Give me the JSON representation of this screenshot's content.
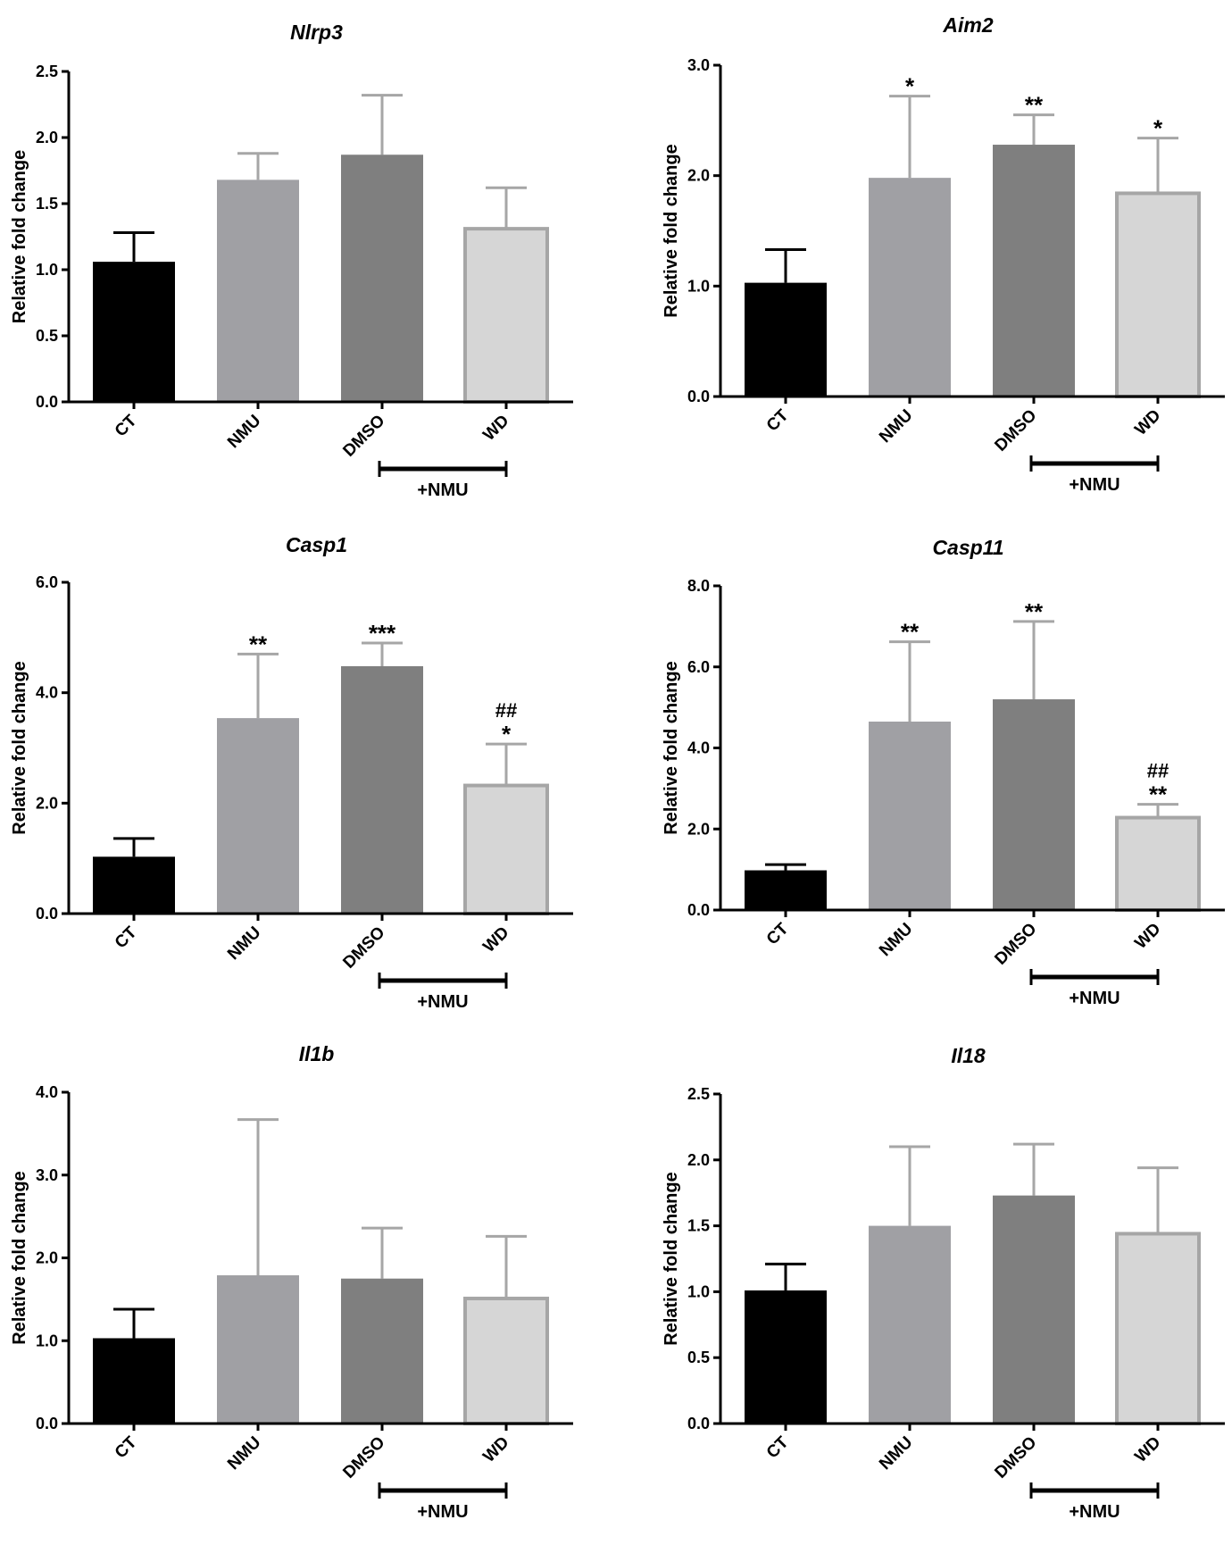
{
  "chart_data": [
    {
      "type": "bar",
      "title": "Nlrp3",
      "ylabel": "Relative fold change",
      "ylim": [
        0,
        2.5
      ],
      "yticks": [
        "0.0",
        "0.5",
        "1.0",
        "1.5",
        "2.0",
        "2.5"
      ],
      "categories": [
        "CT",
        "NMU",
        "DMSO",
        "WD"
      ],
      "values": [
        1.06,
        1.68,
        1.87,
        1.31
      ],
      "errors": [
        0.22,
        0.2,
        0.45,
        0.31
      ],
      "significance": [
        "",
        "",
        "",
        ""
      ],
      "hash_marks": [
        "",
        "",
        "",
        ""
      ],
      "group_label": "+NMU",
      "group_span": [
        "DMSO",
        "WD"
      ],
      "colors": [
        "#000000",
        "#a0a0a4",
        "#7f7f7f",
        "#d6d6d6"
      ]
    },
    {
      "type": "bar",
      "title": "Aim2",
      "ylabel": "Relative fold change",
      "ylim": [
        0,
        3.0
      ],
      "yticks": [
        "0.0",
        "1.0",
        "2.0",
        "3.0"
      ],
      "categories": [
        "CT",
        "NMU",
        "DMSO",
        "WD"
      ],
      "values": [
        1.03,
        1.98,
        2.28,
        1.84
      ],
      "errors": [
        0.3,
        0.74,
        0.27,
        0.5
      ],
      "significance": [
        "",
        "*",
        "**",
        "*"
      ],
      "hash_marks": [
        "",
        "",
        "",
        ""
      ],
      "group_label": "+NMU",
      "group_span": [
        "DMSO",
        "WD"
      ],
      "colors": [
        "#000000",
        "#a0a0a4",
        "#7f7f7f",
        "#d6d6d6"
      ]
    },
    {
      "type": "bar",
      "title": "Casp1",
      "ylabel": "Relative fold change",
      "ylim": [
        0,
        6.0
      ],
      "yticks": [
        "0.0",
        "2.0",
        "4.0",
        "6.0"
      ],
      "categories": [
        "CT",
        "NMU",
        "DMSO",
        "WD"
      ],
      "values": [
        1.03,
        3.54,
        4.48,
        2.32
      ],
      "errors": [
        0.33,
        1.16,
        0.42,
        0.75
      ],
      "significance": [
        "",
        "**",
        "***",
        "*"
      ],
      "hash_marks": [
        "",
        "",
        "",
        "##"
      ],
      "group_label": "+NMU",
      "group_span": [
        "DMSO",
        "WD"
      ],
      "colors": [
        "#000000",
        "#a0a0a4",
        "#7f7f7f",
        "#d6d6d6"
      ]
    },
    {
      "type": "bar",
      "title": "Casp11",
      "ylabel": "Relative fold change",
      "ylim": [
        0,
        8.0
      ],
      "yticks": [
        "0.0",
        "2.0",
        "4.0",
        "6.0",
        "8.0"
      ],
      "categories": [
        "CT",
        "NMU",
        "DMSO",
        "WD"
      ],
      "values": [
        0.98,
        4.65,
        5.2,
        2.28
      ],
      "errors": [
        0.14,
        1.97,
        1.92,
        0.33
      ],
      "significance": [
        "",
        "**",
        "**",
        "**"
      ],
      "hash_marks": [
        "",
        "",
        "",
        "##"
      ],
      "group_label": "+NMU",
      "group_span": [
        "DMSO",
        "WD"
      ],
      "colors": [
        "#000000",
        "#a0a0a4",
        "#7f7f7f",
        "#d6d6d6"
      ]
    },
    {
      "type": "bar",
      "title": "Il1b",
      "ylabel": "Relative fold change",
      "ylim": [
        0,
        4.0
      ],
      "yticks": [
        "0.0",
        "1.0",
        "2.0",
        "3.0",
        "4.0"
      ],
      "categories": [
        "CT",
        "NMU",
        "DMSO",
        "WD"
      ],
      "values": [
        1.03,
        1.79,
        1.75,
        1.51
      ],
      "errors": [
        0.35,
        1.88,
        0.61,
        0.75
      ],
      "significance": [
        "",
        "",
        "",
        ""
      ],
      "hash_marks": [
        "",
        "",
        "",
        ""
      ],
      "group_label": "+NMU",
      "group_span": [
        "DMSO",
        "WD"
      ],
      "colors": [
        "#000000",
        "#a0a0a4",
        "#7f7f7f",
        "#d6d6d6"
      ]
    },
    {
      "type": "bar",
      "title": "Il18",
      "ylabel": "Relative fold change",
      "ylim": [
        0,
        2.5
      ],
      "yticks": [
        "0.0",
        "0.5",
        "1.0",
        "1.5",
        "2.0",
        "2.5"
      ],
      "categories": [
        "CT",
        "NMU",
        "DMSO",
        "WD"
      ],
      "values": [
        1.01,
        1.5,
        1.73,
        1.44
      ],
      "errors": [
        0.2,
        0.6,
        0.39,
        0.5
      ],
      "significance": [
        "",
        "",
        "",
        ""
      ],
      "hash_marks": [
        "",
        "",
        "",
        ""
      ],
      "group_label": "+NMU",
      "group_span": [
        "DMSO",
        "WD"
      ],
      "colors": [
        "#000000",
        "#a0a0a4",
        "#7f7f7f",
        "#d6d6d6"
      ]
    }
  ]
}
